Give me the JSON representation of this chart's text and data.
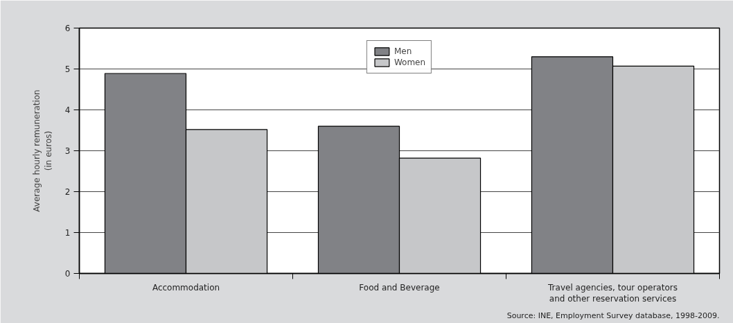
{
  "chart_data": {
    "type": "bar",
    "ylabel": "Average hourly remuneration (in euros)",
    "categories": [
      "Accommodation",
      "Food and Beverage",
      "Travel agencies, tour operators and other reservation services"
    ],
    "series": [
      {
        "name": "Men",
        "color": "#818286",
        "values": [
          4.89,
          3.6,
          5.3
        ]
      },
      {
        "name": "Women",
        "color": "#c6c7c9",
        "values": [
          3.52,
          2.82,
          5.07
        ]
      }
    ],
    "ylim": [
      0,
      6
    ],
    "yticks": [
      0,
      1,
      2,
      3,
      4,
      5,
      6
    ],
    "grid": "y",
    "legend": "top",
    "annotations": [
      "Source: INE, Employment Survey database, 1998-2009."
    ]
  }
}
